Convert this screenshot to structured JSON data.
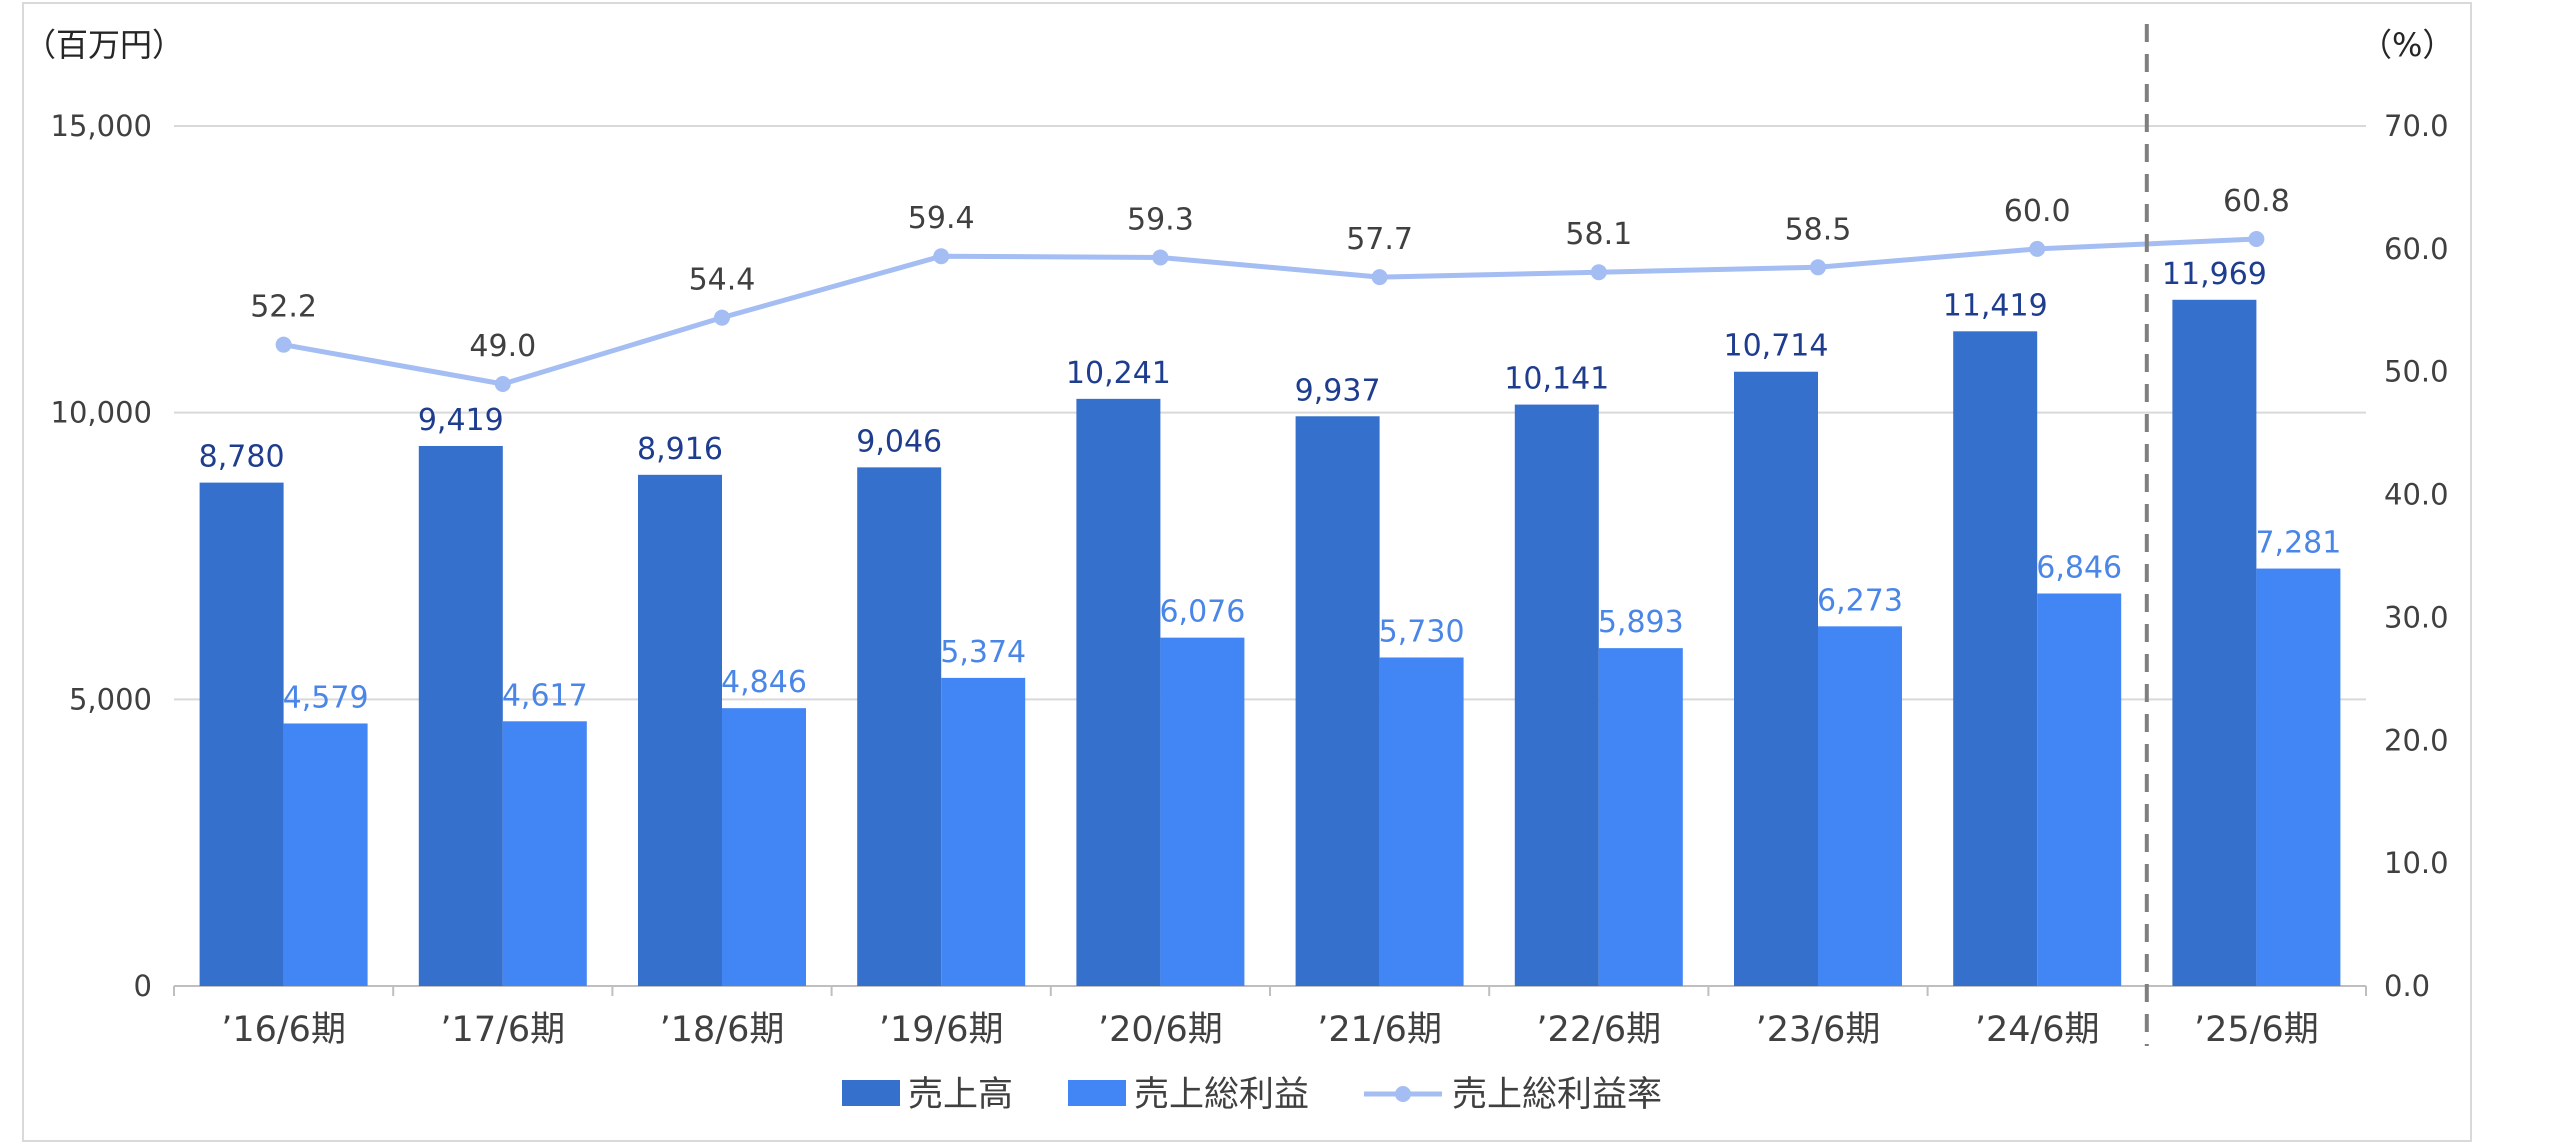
{
  "chart_data": {
    "type": "bar",
    "categories": [
      "’16/6期",
      "’17/6期",
      "’18/6期",
      "’19/6期",
      "’20/6期",
      "’21/6期",
      "’22/6期",
      "’23/6期",
      "’24/6期",
      "’25/6期"
    ],
    "series": [
      {
        "name": "売上高",
        "type": "bar",
        "axis": "left",
        "color": "#3570cc",
        "values": [
          8780,
          9419,
          8916,
          9046,
          10241,
          9937,
          10141,
          10714,
          11419,
          11969
        ],
        "labels": [
          "8,780",
          "9,419",
          "8,916",
          "9,046",
          "10,241",
          "9,937",
          "10,141",
          "10,714",
          "11,419",
          "11,969"
        ]
      },
      {
        "name": "売上総利益",
        "type": "bar",
        "axis": "left",
        "color": "#4285f4",
        "values": [
          4579,
          4617,
          4846,
          5374,
          6076,
          5730,
          5893,
          6273,
          6846,
          7281
        ],
        "labels": [
          "4,579",
          "4,617",
          "4,846",
          "5,374",
          "6,076",
          "5,730",
          "5,893",
          "6,273",
          "6,846",
          "7,281"
        ]
      },
      {
        "name": "売上総利益率",
        "type": "line",
        "axis": "right",
        "color": "#a4bdf2",
        "values": [
          52.2,
          49.0,
          54.4,
          59.4,
          59.3,
          57.7,
          58.1,
          58.5,
          60.0,
          60.8
        ],
        "labels": [
          "52.2",
          "49.0",
          "54.4",
          "59.4",
          "59.3",
          "57.7",
          "58.1",
          "58.5",
          "60.0",
          "60.8"
        ]
      }
    ],
    "y_left": {
      "unit": "（百万円）",
      "min": 0,
      "max": 15000,
      "ticks": [
        0,
        5000,
        10000,
        15000
      ],
      "tick_labels": [
        "0",
        "5,000",
        "10,000",
        "15,000"
      ]
    },
    "y_right": {
      "unit": "（%）",
      "min": 0,
      "max": 70,
      "ticks": [
        0,
        10,
        20,
        30,
        40,
        50,
        60,
        70
      ],
      "tick_labels": [
        "0.0",
        "10.0",
        "20.0",
        "30.0",
        "40.0",
        "50.0",
        "60.0",
        "70.0"
      ]
    },
    "grid": true,
    "divider_after_category": "’24/6期",
    "legend_position": "bottom"
  }
}
